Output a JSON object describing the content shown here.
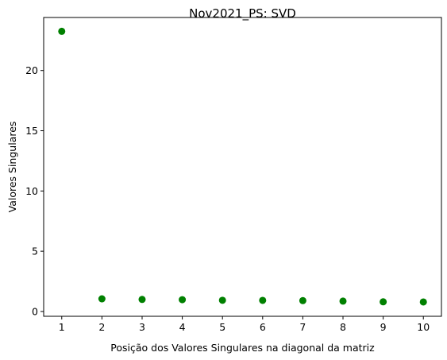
{
  "chart_data": {
    "type": "scatter",
    "title": "Nov2021_PS: SVD",
    "xlabel": "Posição dos Valores Singulares na diagonal da matriz",
    "ylabel": "Valores Singulares",
    "x": [
      1,
      2,
      3,
      4,
      5,
      6,
      7,
      8,
      9,
      10
    ],
    "y": [
      23.25,
      1.05,
      1.0,
      0.98,
      0.93,
      0.92,
      0.9,
      0.86,
      0.8,
      0.79
    ],
    "xlim": [
      0.55,
      10.45
    ],
    "ylim": [
      -0.4,
      24.4
    ],
    "xticks": [
      1,
      2,
      3,
      4,
      5,
      6,
      7,
      8,
      9,
      10
    ],
    "yticks": [
      0,
      5,
      10,
      15,
      20
    ],
    "marker_color": "#008000",
    "grid": false
  }
}
